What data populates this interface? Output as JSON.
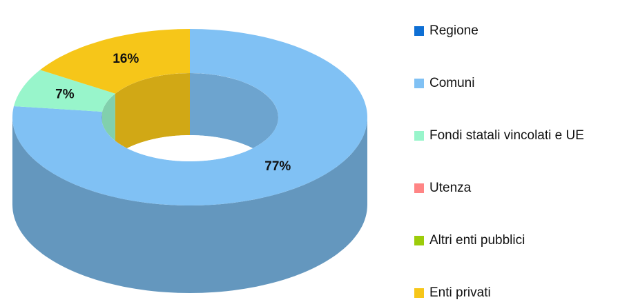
{
  "chart_data": {
    "type": "donut3d",
    "categories": [
      "Regione",
      "Comuni",
      "Fondi statali vincolati e UE",
      "Utenza",
      "Altri enti pubblici",
      "Enti privati"
    ],
    "values": [
      0,
      77,
      7,
      0,
      0,
      16
    ],
    "value_labels": [
      null,
      "77%",
      "7%",
      null,
      null,
      "16%"
    ],
    "colors": [
      "#0e6fd4",
      "#80c1f4",
      "#98f5cb",
      "#ff8585",
      "#9ccc0a",
      "#f6c619"
    ],
    "legend": "right"
  }
}
